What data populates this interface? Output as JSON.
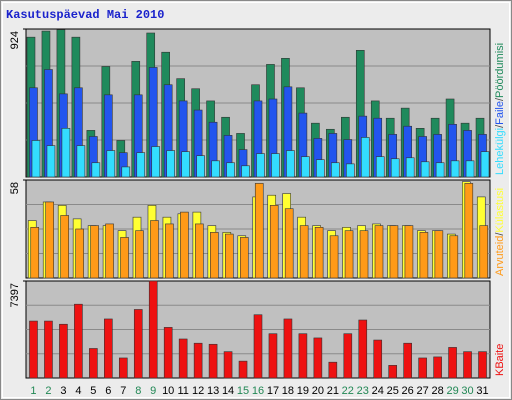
{
  "title": "Kasutuspäevad Mai 2010",
  "chart_data": [
    {
      "type": "bar",
      "ylim": [
        0,
        924
      ],
      "yticks": [
        924
      ],
      "legend_separator": "/",
      "series": [
        {
          "name": "Pöördumisi",
          "color": "#1f8a5c",
          "values": [
            873,
            911,
            920,
            873,
            291,
            690,
            228,
            722,
            899,
            779,
            614,
            551,
            475,
            373,
            272,
            576,
            703,
            741,
            557,
            336,
            298,
            373,
            791,
            475,
            367,
            430,
            304,
            367,
            487,
            336,
            367
          ]
        },
        {
          "name": "Faile",
          "color": "#2255ee",
          "values": [
            557,
            671,
            519,
            557,
            253,
            513,
            152,
            513,
            684,
            576,
            475,
            418,
            342,
            260,
            171,
            475,
            487,
            563,
            399,
            241,
            272,
            234,
            380,
            367,
            266,
            317,
            253,
            266,
            329,
            291,
            266
          ]
        },
        {
          "name": "Lehekülgi",
          "color": "#33ddff",
          "values": [
            228,
            196,
            304,
            196,
            89,
            165,
            63,
            152,
            190,
            165,
            158,
            133,
            101,
            89,
            70,
            146,
            146,
            165,
            127,
            108,
            89,
            82,
            247,
            127,
            114,
            120,
            95,
            89,
            101,
            101,
            158
          ]
        }
      ]
    },
    {
      "type": "bar",
      "ylim": [
        0,
        58
      ],
      "yticks": [
        58
      ],
      "legend_separator": "/",
      "series": [
        {
          "name": "Külastusi",
          "color": "#ffff33",
          "values": [
            34,
            45,
            43,
            35,
            31,
            31,
            28,
            36,
            43,
            36,
            38,
            39,
            31,
            27,
            25,
            48,
            49,
            50,
            36,
            31,
            28,
            30,
            31,
            32,
            31,
            31,
            28,
            28,
            26,
            57,
            48
          ]
        },
        {
          "name": "Arvuteid",
          "color": "#ff9a18",
          "values": [
            30,
            45,
            37,
            29,
            31,
            32,
            24,
            28,
            34,
            32,
            39,
            32,
            27,
            26,
            24,
            56,
            43,
            41,
            31,
            30,
            25,
            28,
            28,
            31,
            31,
            31,
            27,
            28,
            25,
            56,
            31
          ]
        }
      ]
    },
    {
      "type": "bar",
      "ylim": [
        0,
        7397
      ],
      "yticks": [
        7397
      ],
      "categories": [
        "1",
        "2",
        "3",
        "4",
        "5",
        "6",
        "7",
        "8",
        "9",
        "10",
        "11",
        "12",
        "13",
        "14",
        "15",
        "16",
        "17",
        "18",
        "19",
        "20",
        "21",
        "22",
        "23",
        "24",
        "25",
        "26",
        "27",
        "28",
        "29",
        "30",
        "31"
      ],
      "category_colors": [
        "#228855",
        "#228855",
        "#000",
        "#000",
        "#000",
        "#000",
        "#000",
        "#228855",
        "#228855",
        "#000",
        "#000",
        "#000",
        "#000",
        "#000",
        "#228855",
        "#228855",
        "#000",
        "#000",
        "#000",
        "#000",
        "#000",
        "#228855",
        "#228855",
        "#000",
        "#000",
        "#000",
        "#000",
        "#000",
        "#228855",
        "#228855",
        "#000"
      ],
      "series": [
        {
          "name": "KBaite",
          "color": "#ee1111",
          "values": [
            4342,
            4342,
            4100,
            5628,
            2251,
            4502,
            1528,
            5226,
            7397,
            3859,
            2975,
            2653,
            2573,
            2010,
            1286,
            4824,
            3377,
            4502,
            3377,
            3055,
            1206,
            3377,
            4422,
            2894,
            965,
            2653,
            1528,
            1608,
            2332,
            2010,
            2010
          ]
        }
      ]
    }
  ]
}
